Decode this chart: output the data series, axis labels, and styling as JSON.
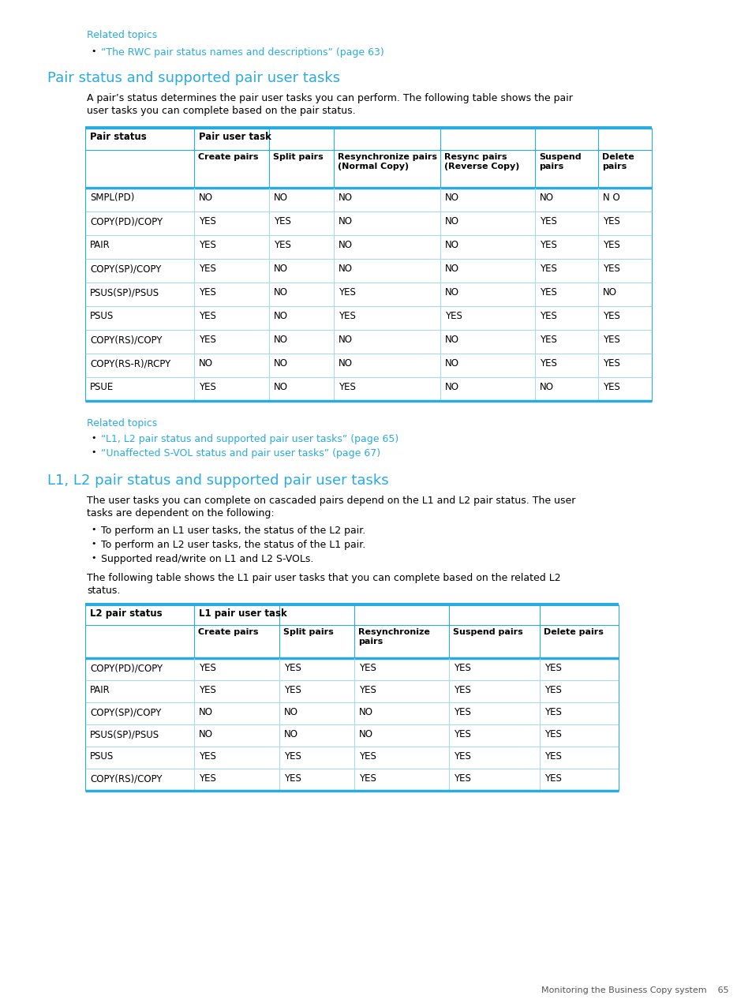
{
  "bg_color": "#ffffff",
  "cyan_color": "#29ABE2",
  "text_color": "#000000",
  "table_border_color": "#29ABE2",
  "light_cyan_row": "#E8F7FD",
  "related_topics_1": "Related topics",
  "bullet_1": "“The RWC pair status names and descriptions” (page 63)",
  "section1_title": "Pair status and supported pair user tasks",
  "section1_body_1": "A pair’s status determines the pair user tasks you can perform. The following table shows the pair",
  "section1_body_2": "user tasks you can complete based on the pair status.",
  "table1_col0_header": "Pair status",
  "table1_col1_header": "Pair user task",
  "table1_subheaders": [
    "Create pairs",
    "Split pairs",
    "Resynchronize pairs\n(Normal Copy)",
    "Resync pairs\n(Reverse Copy)",
    "Suspend\npairs",
    "Delete\npairs"
  ],
  "table1_rows": [
    [
      "SMPL(PD)",
      "NO",
      "NO",
      "NO",
      "NO",
      "NO",
      "N O"
    ],
    [
      "COPY(PD)/COPY",
      "YES",
      "YES",
      "NO",
      "NO",
      "YES",
      "YES"
    ],
    [
      "PAIR",
      "YES",
      "YES",
      "NO",
      "NO",
      "YES",
      "YES"
    ],
    [
      "COPY(SP)/COPY",
      "YES",
      "NO",
      "NO",
      "NO",
      "YES",
      "YES"
    ],
    [
      "PSUS(SP)/PSUS",
      "YES",
      "NO",
      "YES",
      "NO",
      "YES",
      "NO"
    ],
    [
      "PSUS",
      "YES",
      "NO",
      "YES",
      "YES",
      "YES",
      "YES"
    ],
    [
      "COPY(RS)/COPY",
      "YES",
      "NO",
      "NO",
      "NO",
      "YES",
      "YES"
    ],
    [
      "COPY(RS-R)/RCPY",
      "NO",
      "NO",
      "NO",
      "NO",
      "YES",
      "YES"
    ],
    [
      "PSUE",
      "YES",
      "NO",
      "YES",
      "NO",
      "NO",
      "YES"
    ]
  ],
  "related_topics_2": "Related topics",
  "bullet_2a": "“L1, L2 pair status and supported pair user tasks” (page 65)",
  "bullet_2b": "“Unaffected S-VOL status and pair user tasks” (page 67)",
  "section2_title": "L1, L2 pair status and supported pair user tasks",
  "section2_body_1": "The user tasks you can complete on cascaded pairs depend on the L1 and L2 pair status. The user",
  "section2_body_2": "tasks are dependent on the following:",
  "section2_bullets": [
    "To perform an L1 user tasks, the status of the L2 pair.",
    "To perform an L2 user tasks, the status of the L1 pair.",
    "Supported read/write on L1 and L2 S-VOLs."
  ],
  "section2_closing_1": "The following table shows the L1 pair user tasks that you can complete based on the related L2",
  "section2_closing_2": "status.",
  "table2_col0_header": "L2 pair status",
  "table2_col1_header": "L1 pair user task",
  "table2_subheaders": [
    "Create pairs",
    "Split pairs",
    "Resynchronize\npairs",
    "Suspend pairs",
    "Delete pairs"
  ],
  "table2_rows": [
    [
      "COPY(PD)/COPY",
      "YES",
      "YES",
      "YES",
      "YES",
      "YES"
    ],
    [
      "PAIR",
      "YES",
      "YES",
      "YES",
      "YES",
      "YES"
    ],
    [
      "COPY(SP)/COPY",
      "NO",
      "NO",
      "NO",
      "YES",
      "YES"
    ],
    [
      "PSUS(SP)/PSUS",
      "NO",
      "NO",
      "NO",
      "YES",
      "YES"
    ],
    [
      "PSUS",
      "YES",
      "YES",
      "YES",
      "YES",
      "YES"
    ],
    [
      "COPY(RS)/COPY",
      "YES",
      "YES",
      "YES",
      "YES",
      "YES"
    ]
  ],
  "footer_text": "Monitoring the Business Copy system    65"
}
